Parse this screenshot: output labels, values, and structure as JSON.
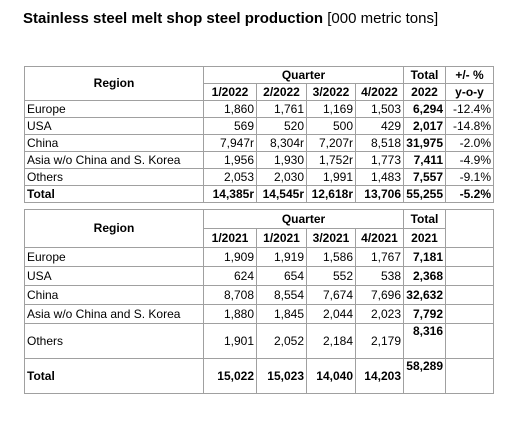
{
  "title": "Stainless steel melt shop steel production",
  "unit": "[000 metric tons]",
  "tables": [
    {
      "header_top": [
        "Region",
        "Quarter",
        "Total",
        "+/- %"
      ],
      "header_sub": [
        "1/2022",
        "2/2022",
        "3/2022",
        "4/2022",
        "2022",
        "y-o-y"
      ],
      "rows": [
        [
          "Europe",
          "1,860",
          "1,761",
          "1,169",
          "1,503",
          "6,294",
          "-12.4%"
        ],
        [
          "USA",
          "569",
          "520",
          "500",
          "429",
          "2,017",
          "-14.8%"
        ],
        [
          "China",
          "7,947r",
          "8,304r",
          "7,207r",
          "8,518",
          "31,975",
          "-2.0%"
        ],
        [
          "Asia w/o China and S. Korea",
          "1,956",
          "1,930",
          "1,752r",
          "1,773",
          "7,411",
          "-4.9%"
        ],
        [
          "Others",
          "2,053",
          "2,030",
          "1,991",
          "1,483",
          "7,557",
          "-9.1%"
        ],
        [
          "Total",
          "14,385r",
          "14,545r",
          "12,618r",
          "13,706",
          "55,255",
          "-5.2%"
        ]
      ]
    },
    {
      "header_top": [
        "Region",
        "Quarter",
        "Total"
      ],
      "header_sub": [
        "1/2021",
        "1/2021",
        "3/2021",
        "4/2021",
        "2021"
      ],
      "rows": [
        [
          "Europe",
          "1,909",
          "1,919",
          "1,586",
          "1,767",
          "7,181"
        ],
        [
          "USA",
          "624",
          "654",
          "552",
          "538",
          "2,368"
        ],
        [
          "China",
          "8,708",
          "8,554",
          "7,674",
          "7,696",
          "32,632"
        ],
        [
          "Asia w/o China and S. Korea",
          "1,880",
          "1,845",
          "2,044",
          "2,023",
          "7,792"
        ],
        [
          "Others",
          "1,901",
          "2,052",
          "2,184",
          "2,179",
          "8,316"
        ],
        [
          "Total",
          "15,022",
          "15,023",
          "14,040",
          "14,203",
          "58,289"
        ]
      ]
    }
  ]
}
